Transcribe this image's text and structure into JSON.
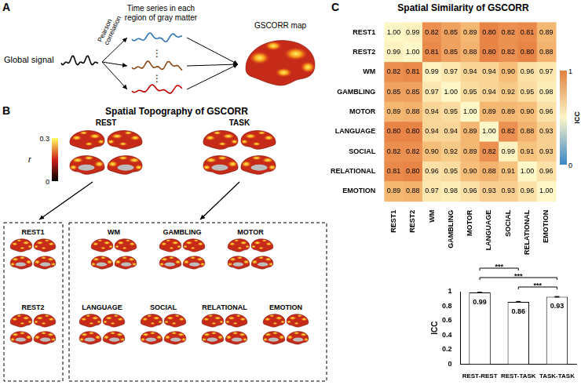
{
  "panels": {
    "A": {
      "label": "A",
      "input": "Global signal",
      "method": [
        "Pearson",
        "correlation"
      ],
      "series_title": [
        "Time series in each",
        "region of gray matter"
      ],
      "ellipsis": "⋮",
      "output": "GSCORR map"
    },
    "B": {
      "label": "B",
      "title": "Spatial Topography of GSCORR",
      "colorbar": {
        "range": [
          0,
          0.3
        ],
        "ticks": [
          0,
          0.3
        ],
        "label": "r"
      },
      "groups": [
        {
          "name": "REST",
          "conditions": [
            "REST1",
            "REST2"
          ]
        },
        {
          "name": "TASK",
          "conditions": [
            "WM",
            "GAMBLING",
            "MOTOR",
            "LANGUAGE",
            "SOCIAL",
            "RELATIONAL",
            "EMOTION"
          ]
        }
      ]
    },
    "C": {
      "label": "C"
    }
  },
  "chart_data": [
    {
      "type": "heatmap",
      "title": "Spatial Similarity of GSCORR",
      "categories": [
        "REST1",
        "REST2",
        "WM",
        "GAMBLING",
        "MOTOR",
        "LANGUAGE",
        "SOCIAL",
        "RELATIONAL",
        "EMOTION"
      ],
      "cells": [
        [
          1.0,
          0.99,
          0.82,
          0.85,
          0.89,
          0.8,
          0.82,
          0.81,
          0.89
        ],
        [
          0.99,
          1.0,
          0.81,
          0.85,
          0.88,
          0.8,
          0.82,
          0.8,
          0.88
        ],
        [
          0.82,
          0.81,
          0.99,
          0.97,
          0.94,
          0.94,
          0.9,
          0.96,
          0.97
        ],
        [
          0.85,
          0.85,
          0.97,
          1.0,
          0.95,
          0.94,
          0.92,
          0.95,
          0.98
        ],
        [
          0.89,
          0.88,
          0.94,
          0.95,
          1.0,
          0.89,
          0.89,
          0.9,
          0.96
        ],
        [
          0.8,
          0.8,
          0.94,
          0.94,
          0.89,
          1.0,
          0.82,
          0.88,
          0.93
        ],
        [
          0.82,
          0.82,
          0.9,
          0.92,
          0.89,
          0.82,
          0.99,
          0.91,
          0.93
        ],
        [
          0.81,
          0.8,
          0.96,
          0.95,
          0.9,
          0.88,
          0.91,
          1.0,
          0.96
        ],
        [
          0.89,
          0.88,
          0.97,
          0.98,
          0.96,
          0.93,
          0.93,
          0.96,
          1.0
        ]
      ],
      "value_labels": [
        [
          "1.00",
          "0.99",
          "0.82",
          "0.85",
          "0.89",
          "0.80",
          "0.82",
          "0.81",
          "0.89"
        ],
        [
          "0.99",
          "1.00",
          "0.81",
          "0.85",
          "0.88",
          "0.80",
          "0.82",
          "0.80",
          "0.88"
        ],
        [
          "0.82",
          "0.81",
          "0.99",
          "0.97",
          "0.94",
          "0.94",
          "0.90",
          "0.96",
          "0.97"
        ],
        [
          "0.85",
          "0.85",
          "0.97",
          "1.00",
          "0.95",
          "0.94",
          "0.92",
          "0.95",
          "0.98"
        ],
        [
          "0.89",
          "0.88",
          "0.94",
          "0.95",
          "1.00",
          "0.89",
          "0.89",
          "0.90",
          "0.96"
        ],
        [
          "0.80",
          "0.80",
          "0.94",
          "0.94",
          "0.89",
          "1.00",
          "0.82",
          "0.88",
          "0.93"
        ],
        [
          "0.82",
          "0.82",
          "0.90",
          "0.92",
          "0.89",
          "0.82",
          "0.99",
          "0.91",
          "0.93"
        ],
        [
          "0.81",
          "0.80",
          "0.96",
          "0.95",
          "0.90",
          "0.88",
          "0.91",
          "1.00",
          "0.96"
        ],
        [
          "0.89",
          "0.88",
          "0.97",
          "0.98",
          "0.96",
          "0.93",
          "0.93",
          "0.96",
          "1.00"
        ]
      ],
      "data_labels": true,
      "colorbar": {
        "range": [
          0,
          1
        ],
        "ticks": [
          0,
          1
        ],
        "label": "ICC"
      }
    },
    {
      "type": "bar",
      "categories": [
        "REST-REST",
        "REST-TASK",
        "TASK-TASK"
      ],
      "values": [
        0.99,
        0.86,
        0.93
      ],
      "errors": [
        0.003,
        0.006,
        0.004
      ],
      "color": "#ffffff",
      "ylabel": "ICC",
      "ylim": [
        0,
        1
      ],
      "yticks": [
        0,
        0.2,
        0.4,
        0.6,
        0.8,
        1
      ],
      "grid": false,
      "data_labels": true,
      "annotations": [
        {
          "from": "REST-REST",
          "to": "REST-TASK",
          "text": "***"
        },
        {
          "from": "REST-REST",
          "to": "TASK-TASK",
          "text": "***"
        },
        {
          "from": "REST-TASK",
          "to": "TASK-TASK",
          "text": "***"
        }
      ]
    }
  ]
}
